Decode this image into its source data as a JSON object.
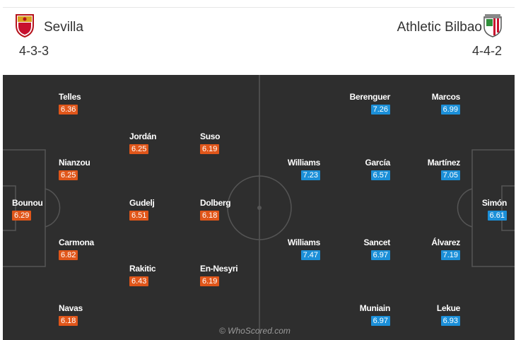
{
  "home": {
    "name": "Sevilla",
    "formation": "4-3-3",
    "crest_icon": "sevilla-crest-icon",
    "rating_color": "#e0561a",
    "players": [
      {
        "name": "Telles",
        "rating": "6.36"
      },
      {
        "name": "Jordán",
        "rating": "6.25"
      },
      {
        "name": "Suso",
        "rating": "6.19"
      },
      {
        "name": "Nianzou",
        "rating": "6.25"
      },
      {
        "name": "Bounou",
        "rating": "6.29"
      },
      {
        "name": "Gudelj",
        "rating": "6.51"
      },
      {
        "name": "Dolberg",
        "rating": "6.18"
      },
      {
        "name": "Carmona",
        "rating": "6.82"
      },
      {
        "name": "Rakitic",
        "rating": "6.43"
      },
      {
        "name": "En-Nesyri",
        "rating": "6.19"
      },
      {
        "name": "Navas",
        "rating": "6.18"
      }
    ]
  },
  "away": {
    "name": "Athletic Bilbao",
    "formation": "4-4-2",
    "crest_icon": "athletic-bilbao-crest-icon",
    "rating_color": "#1b8fd8",
    "players": [
      {
        "name": "Berenguer",
        "rating": "7.26"
      },
      {
        "name": "Marcos",
        "rating": "6.99"
      },
      {
        "name": "Williams",
        "rating": "7.23"
      },
      {
        "name": "García",
        "rating": "6.57"
      },
      {
        "name": "Martínez",
        "rating": "7.05"
      },
      {
        "name": "Simón",
        "rating": "6.61"
      },
      {
        "name": "Williams",
        "rating": "7.47"
      },
      {
        "name": "Sancet",
        "rating": "6.97"
      },
      {
        "name": "Álvarez",
        "rating": "7.19"
      },
      {
        "name": "Muniain",
        "rating": "6.97"
      },
      {
        "name": "Lekue",
        "rating": "6.93"
      }
    ]
  },
  "watermark": "© WhoScored.com",
  "pitch_color": "#2e2e2e"
}
